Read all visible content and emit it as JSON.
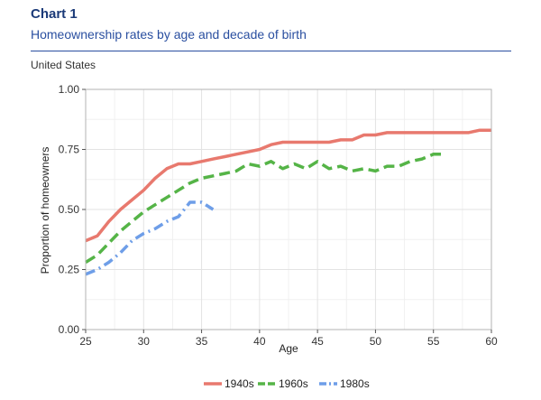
{
  "header": {
    "chart_number": "Chart 1",
    "title": "Homeownership rates by age and decade of birth",
    "subtitle": "United States"
  },
  "chart_data": {
    "type": "line",
    "xlabel": "Age",
    "ylabel": "Proportion of homeowners",
    "xlim": [
      25,
      60
    ],
    "ylim": [
      0,
      1
    ],
    "xticks": [
      25,
      30,
      35,
      40,
      45,
      50,
      55,
      60
    ],
    "yticks": [
      0,
      0.25,
      0.5,
      0.75,
      1
    ],
    "xtick_labels": [
      "25",
      "30",
      "35",
      "40",
      "45",
      "50",
      "55",
      "60"
    ],
    "ytick_labels": [
      "0.00",
      "0.25",
      "0.50",
      "0.75",
      "1.00"
    ],
    "grid": true,
    "legend_position": "bottom",
    "series": [
      {
        "name": "1940s",
        "color": "#e8796e",
        "style": "solid",
        "x": [
          25,
          26,
          27,
          28,
          29,
          30,
          31,
          32,
          33,
          34,
          35,
          36,
          37,
          38,
          39,
          40,
          41,
          42,
          43,
          44,
          45,
          46,
          47,
          48,
          49,
          50,
          51,
          52,
          53,
          54,
          55,
          56,
          57,
          58,
          59,
          60
        ],
        "y": [
          0.37,
          0.39,
          0.45,
          0.5,
          0.54,
          0.58,
          0.63,
          0.67,
          0.69,
          0.69,
          0.7,
          0.71,
          0.72,
          0.73,
          0.74,
          0.75,
          0.77,
          0.78,
          0.78,
          0.78,
          0.78,
          0.78,
          0.79,
          0.79,
          0.81,
          0.81,
          0.82,
          0.82,
          0.82,
          0.82,
          0.82,
          0.82,
          0.82,
          0.82,
          0.83,
          0.83
        ]
      },
      {
        "name": "1960s",
        "color": "#55b447",
        "style": "dashed",
        "x": [
          25,
          26,
          27,
          28,
          29,
          30,
          31,
          32,
          33,
          34,
          35,
          36,
          37,
          38,
          39,
          40,
          41,
          42,
          43,
          44,
          45,
          46,
          47,
          48,
          49,
          50,
          51,
          52,
          53,
          54,
          55,
          56
        ],
        "y": [
          0.28,
          0.31,
          0.36,
          0.41,
          0.45,
          0.49,
          0.52,
          0.55,
          0.58,
          0.61,
          0.63,
          0.64,
          0.65,
          0.66,
          0.69,
          0.68,
          0.7,
          0.67,
          0.69,
          0.67,
          0.7,
          0.67,
          0.68,
          0.66,
          0.67,
          0.66,
          0.68,
          0.68,
          0.7,
          0.71,
          0.73,
          0.73
        ]
      },
      {
        "name": "1980s",
        "color": "#6e9ee8",
        "style": "dashdot",
        "x": [
          25,
          26,
          27,
          28,
          29,
          30,
          31,
          32,
          33,
          34,
          35,
          36
        ],
        "y": [
          0.23,
          0.25,
          0.28,
          0.32,
          0.37,
          0.4,
          0.42,
          0.45,
          0.47,
          0.53,
          0.53,
          0.5
        ]
      }
    ]
  }
}
